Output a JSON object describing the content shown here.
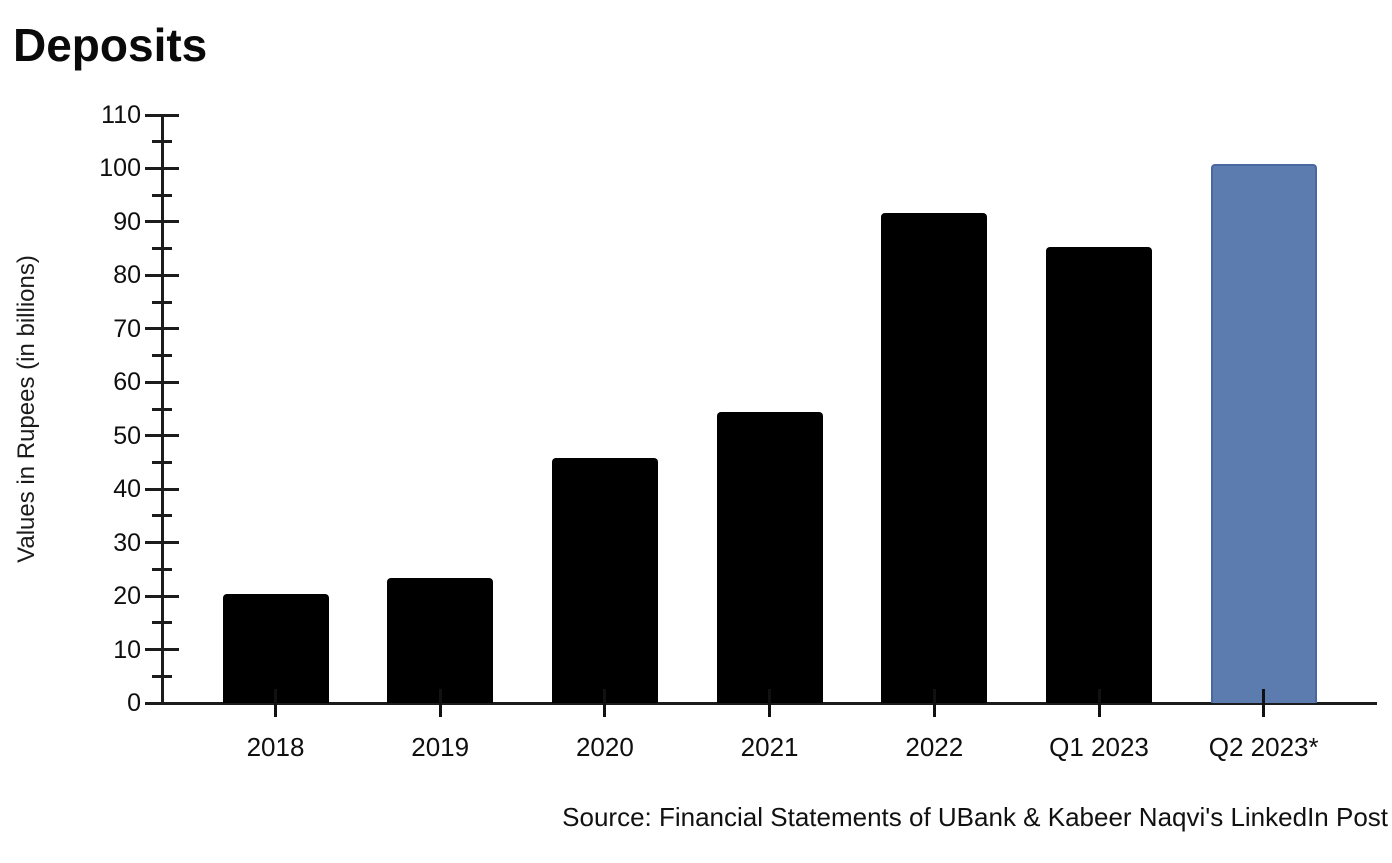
{
  "chart_data": {
    "type": "bar",
    "title": "Deposits",
    "xlabel": "",
    "ylabel": "Values in Rupees (in billions)",
    "categories": [
      "2018",
      "2019",
      "2020",
      "2021",
      "2022",
      "Q1 2023",
      "Q2 2023*"
    ],
    "values": [
      20.4,
      23.3,
      45.8,
      54.5,
      91.7,
      85.3,
      100.9
    ],
    "bar_colors": [
      "#000000",
      "#000000",
      "#000000",
      "#000000",
      "#000000",
      "#000000",
      "#5c7bae"
    ],
    "bar_border_colors": [
      "#000000",
      "#000000",
      "#000000",
      "#000000",
      "#000000",
      "#000000",
      "#4a679f"
    ],
    "ylim": [
      0,
      110
    ],
    "yticks": [
      0,
      10,
      20,
      30,
      40,
      50,
      60,
      70,
      80,
      90,
      100,
      110
    ],
    "yminor_tick_step": 5,
    "grid": false,
    "legend": false,
    "axis_color": "#1c1c1c",
    "highlight_color": "#5c7bae",
    "default_bar_color": "#000000",
    "source_note": "Source: Financial Statements of UBank & Kabeer Naqvi's LinkedIn Post"
  }
}
